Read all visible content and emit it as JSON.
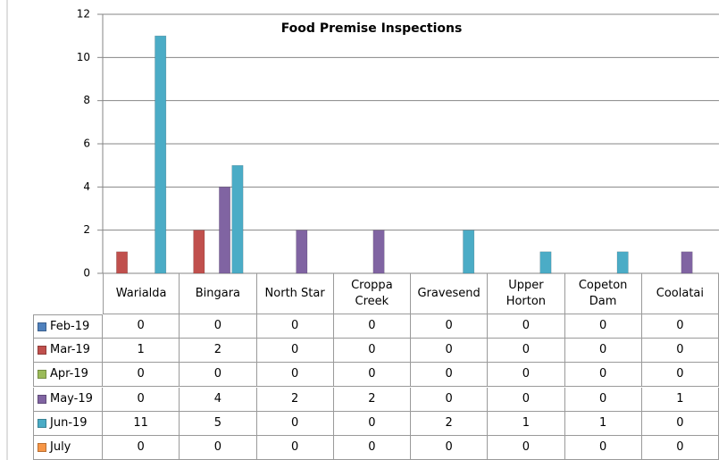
{
  "chart_data": {
    "type": "bar",
    "title": "Food Premise Inspections",
    "categories": [
      "Warialda",
      "Bingara",
      "North Star",
      "Croppa Creek",
      "Gravesend",
      "Upper Horton",
      "Copeton Dam",
      "Coolatai"
    ],
    "series": [
      {
        "name": "Feb-19",
        "color": "#4f81bd",
        "values": [
          0,
          0,
          0,
          0,
          0,
          0,
          0,
          0
        ]
      },
      {
        "name": "Mar-19",
        "color": "#c0504d",
        "values": [
          1,
          2,
          0,
          0,
          0,
          0,
          0,
          0
        ]
      },
      {
        "name": "Apr-19",
        "color": "#9bbb59",
        "values": [
          0,
          0,
          0,
          0,
          0,
          0,
          0,
          0
        ]
      },
      {
        "name": "May-19",
        "color": "#8064a2",
        "values": [
          0,
          4,
          2,
          2,
          0,
          0,
          0,
          1
        ]
      },
      {
        "name": "Jun-19",
        "color": "#4bacc6",
        "values": [
          11,
          5,
          0,
          0,
          2,
          1,
          1,
          0
        ]
      },
      {
        "name": "July",
        "color": "#f79646",
        "values": [
          0,
          0,
          0,
          0,
          0,
          0,
          0,
          0
        ]
      }
    ],
    "ylim": [
      0,
      12
    ],
    "yticks": [
      0,
      2,
      4,
      6,
      8,
      10,
      12
    ],
    "grid": true
  }
}
